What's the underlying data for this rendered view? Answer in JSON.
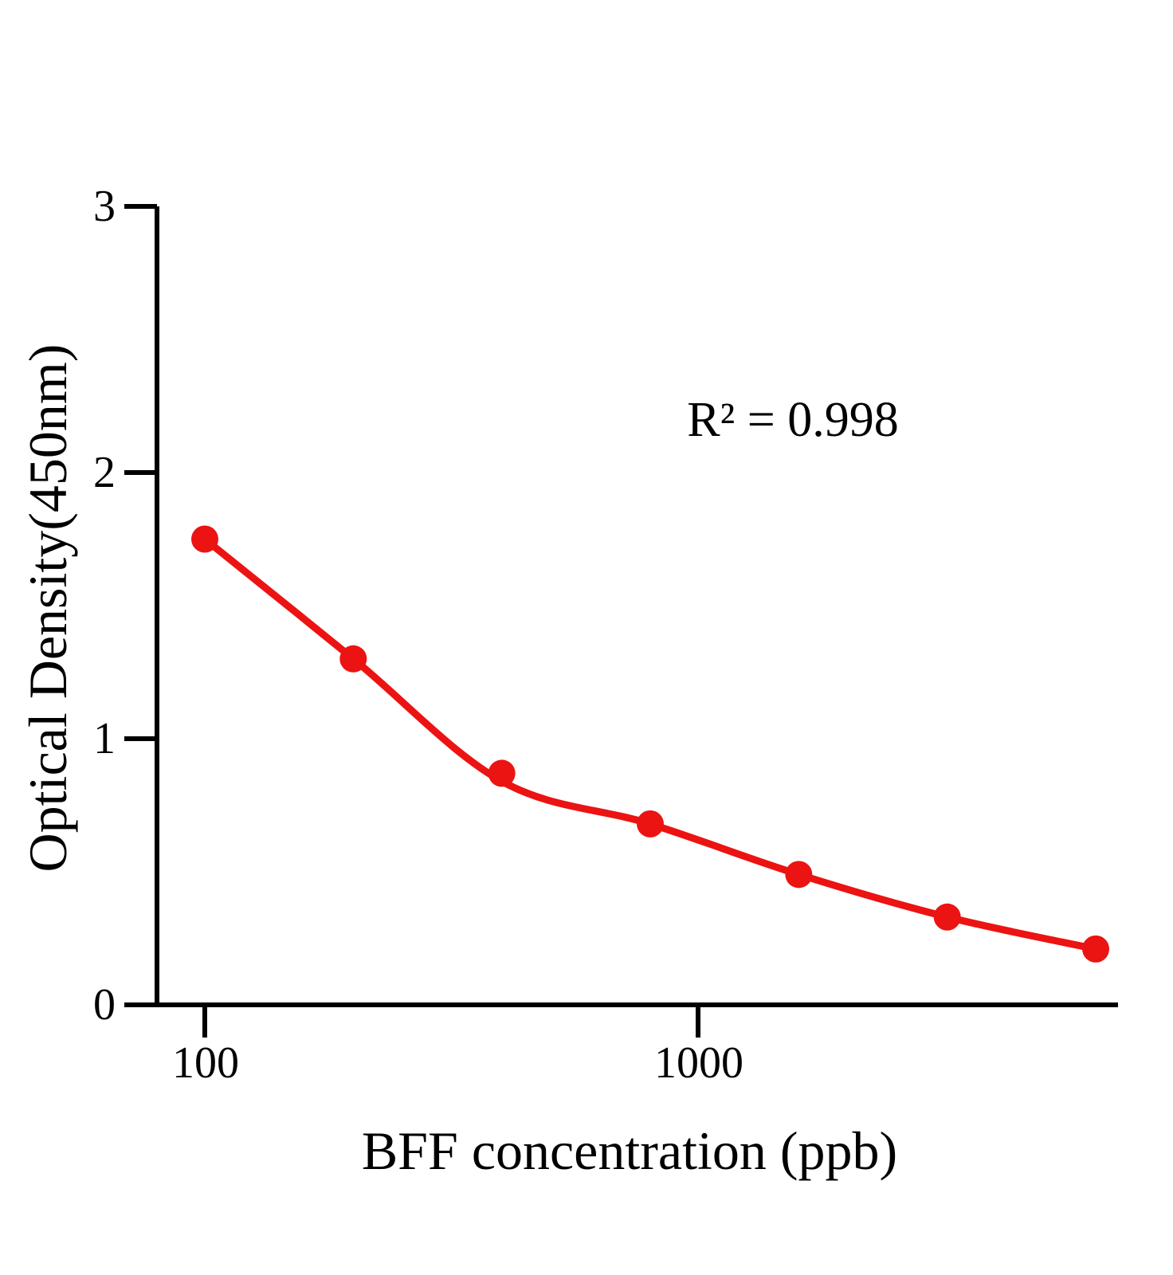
{
  "chart_data": {
    "type": "scatter",
    "title": "",
    "xlabel": "BFF concentration (ppb)",
    "ylabel": "Optical Density(450nm)",
    "annotation": "R² = 0.998",
    "x_scale": "log",
    "x_unit": "ppb",
    "x": [
      100,
      200,
      400,
      800,
      1600,
      3200,
      6400
    ],
    "y": [
      1.75,
      1.3,
      0.87,
      0.68,
      0.49,
      0.33,
      0.21
    ],
    "fit_y": [
      1.75,
      1.3,
      0.84,
      0.68,
      0.49,
      0.33,
      0.21
    ],
    "x_ticks": [
      100,
      1000
    ],
    "x_tick_labels": [
      "100",
      "1000"
    ],
    "y_ticks": [
      3,
      2,
      1,
      0
    ],
    "y_tick_labels": [
      "3",
      "2",
      "1",
      "0"
    ],
    "ylim": [
      0,
      3
    ],
    "grid": false,
    "legend": "none",
    "point_color": "#ec1313",
    "line_color": "#ec1313",
    "axis_color": "#000000",
    "background_color": "#ffffff"
  }
}
